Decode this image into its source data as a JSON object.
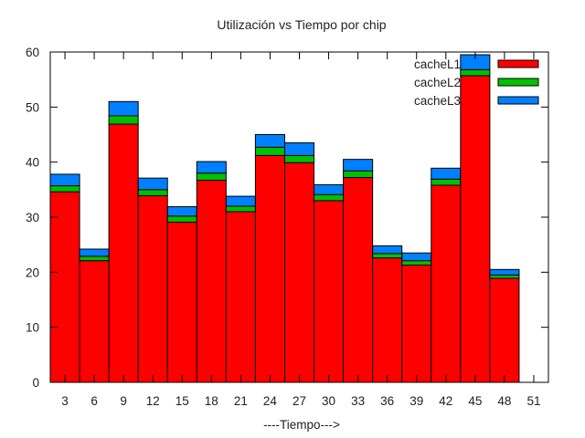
{
  "chart_data": {
    "type": "bar",
    "stacked": true,
    "title": "Utilización vs Tiempo por chip",
    "xlabel": "----Tiempo--->",
    "ylabel": "",
    "ylim": [
      0,
      60
    ],
    "xlim": [
      1.5,
      52.5
    ],
    "yticks": [
      0,
      10,
      20,
      30,
      40,
      50,
      60
    ],
    "xticks": [
      3,
      6,
      9,
      12,
      15,
      18,
      21,
      24,
      27,
      30,
      33,
      36,
      39,
      42,
      45,
      48,
      51
    ],
    "x": [
      3,
      6,
      9,
      12,
      15,
      18,
      21,
      24,
      27,
      30,
      33,
      36,
      39,
      42,
      45,
      48
    ],
    "grid": false,
    "legend_position": "top-right",
    "series": [
      {
        "name": "cacheL1",
        "color": "#ff0000",
        "values": [
          34.6,
          22.1,
          46.9,
          33.9,
          29.1,
          36.7,
          31.0,
          41.2,
          39.9,
          33.0,
          37.2,
          22.6,
          21.3,
          35.8,
          55.7,
          18.9
        ]
      },
      {
        "name": "cacheL2",
        "color": "#00c000",
        "values": [
          1.1,
          0.8,
          1.5,
          1.1,
          1.1,
          1.3,
          1.0,
          1.5,
          1.3,
          1.1,
          1.2,
          0.8,
          0.8,
          1.1,
          1.1,
          0.6
        ]
      },
      {
        "name": "cacheL3",
        "color": "#0080ff",
        "values": [
          2.1,
          1.3,
          2.6,
          2.1,
          1.7,
          2.1,
          1.8,
          2.3,
          2.3,
          1.8,
          2.1,
          1.4,
          1.4,
          2.0,
          2.7,
          1.0
        ]
      }
    ]
  }
}
